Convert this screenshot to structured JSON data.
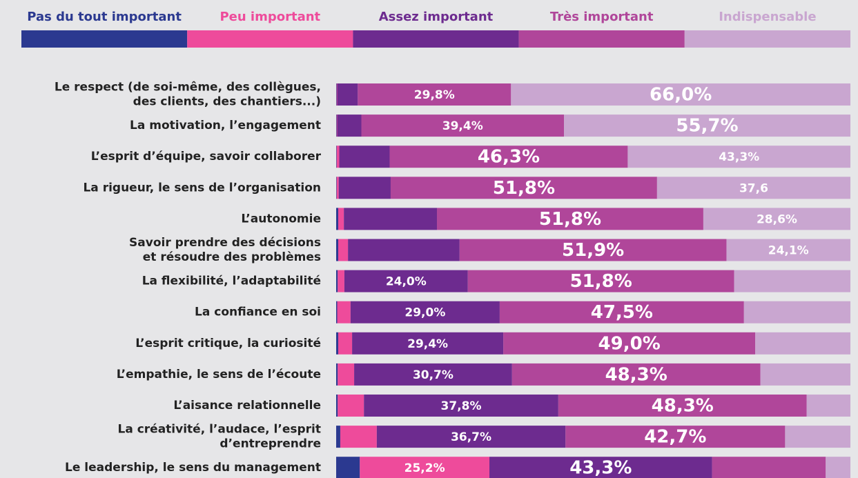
{
  "chart_data": {
    "type": "stacked_bar_horizontal",
    "categories": [
      [
        "Le respect (de soi-même, des collègues,",
        "des clients, des chantiers...)"
      ],
      [
        "La motivation, l’engagement"
      ],
      [
        "L’esprit d’équipe, savoir collaborer"
      ],
      [
        "La rigueur, le sens de l’organisation"
      ],
      [
        "L’autonomie"
      ],
      [
        "Savoir prendre des décisions",
        "et résoudre des problèmes"
      ],
      [
        "La flexibilité, l’adaptabilité"
      ],
      [
        "La confiance en soi"
      ],
      [
        "L’esprit critique, la curiosité"
      ],
      [
        "L’empathie, le sens de l’écoute"
      ],
      [
        "L’aisance relationnelle"
      ],
      [
        "La créativité, l’audace, l’esprit",
        "d’entreprendre"
      ],
      [
        "Le leadership, le sens du management"
      ]
    ],
    "xlim": [
      0,
      100
    ],
    "series": [
      {
        "name": "Pas du tout important",
        "color": "#2b3990",
        "values": [
          0.1,
          0.1,
          0.1,
          0.1,
          0.4,
          0.4,
          0.3,
          0.2,
          0.4,
          0.3,
          0.3,
          0.8,
          4.6
        ],
        "value_labels": [
          null,
          null,
          null,
          null,
          null,
          null,
          null,
          null,
          null,
          null,
          null,
          null,
          null
        ]
      },
      {
        "name": "Peu important",
        "color": "#ee4b9b",
        "values": [
          0.1,
          0.1,
          0.5,
          0.4,
          1.1,
          1.9,
          1.3,
          2.6,
          2.7,
          3.2,
          5.1,
          7.1,
          25.2
        ],
        "value_labels": [
          null,
          null,
          null,
          null,
          null,
          null,
          null,
          null,
          null,
          null,
          null,
          null,
          "25,2%"
        ]
      },
      {
        "name": "Assez important",
        "color": "#6d2b8f",
        "values": [
          4.0,
          4.7,
          9.8,
          10.1,
          18.1,
          21.7,
          24.0,
          29.0,
          29.4,
          30.7,
          37.8,
          36.7,
          43.3
        ],
        "value_labels": [
          null,
          null,
          null,
          null,
          null,
          null,
          "24,0%",
          "29,0%",
          "29,4%",
          "30,7%",
          "37,8%",
          "36,7%",
          "43,3%"
        ]
      },
      {
        "name": "Très important",
        "color": "#b0469a",
        "values": [
          29.8,
          39.4,
          46.3,
          51.8,
          51.8,
          51.9,
          51.8,
          47.5,
          49.0,
          48.3,
          48.3,
          42.7,
          22.1
        ],
        "value_labels": [
          "29,8%",
          "39,4%",
          "46,3%",
          "51,8%",
          "51,8%",
          "51,9%",
          "51,8%",
          "47,5%",
          "49,0%",
          "48,3%",
          "48,3%",
          "42,7%",
          null
        ]
      },
      {
        "name": "Indispensable",
        "color": "#c9a6d0",
        "values": [
          66.0,
          55.7,
          43.3,
          37.6,
          28.6,
          24.1,
          22.6,
          20.7,
          18.5,
          17.5,
          8.5,
          12.7,
          4.8
        ],
        "value_labels": [
          "66,0%",
          "55,7%",
          "43,3%",
          "37,6",
          "28,6%",
          "24,1%",
          null,
          null,
          null,
          null,
          null,
          null,
          null
        ]
      }
    ]
  }
}
